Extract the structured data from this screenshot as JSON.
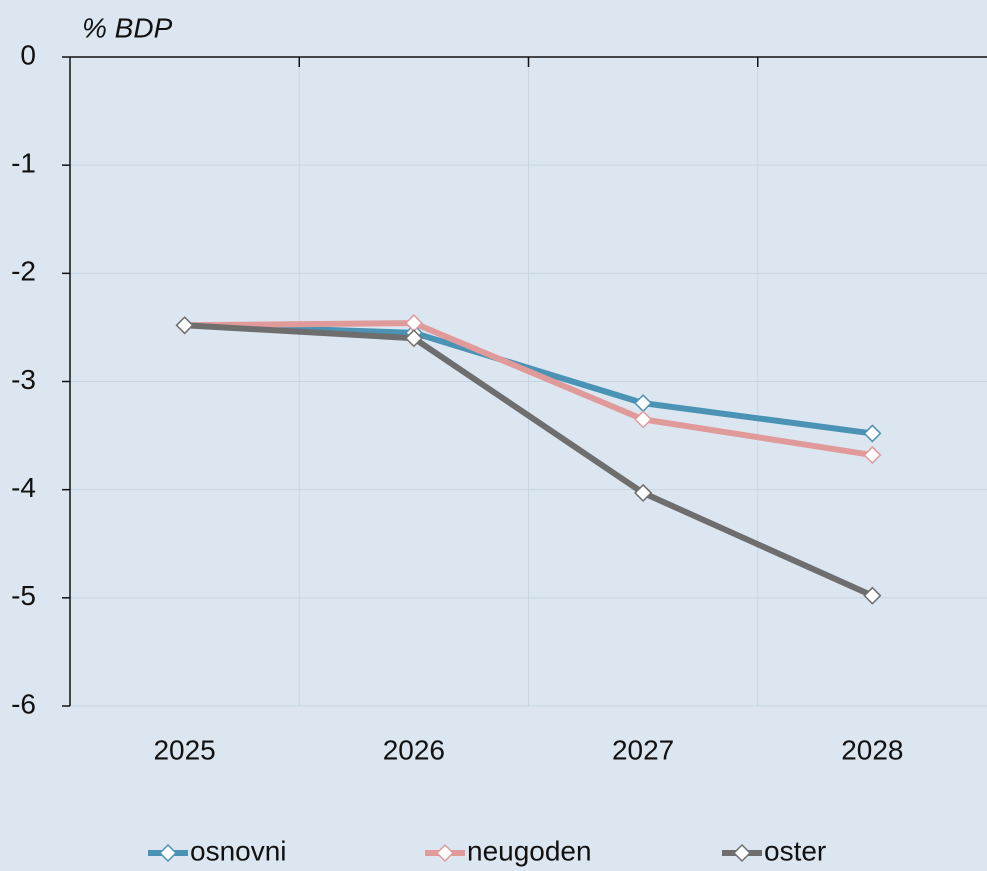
{
  "chart_data": {
    "type": "line",
    "y_label": "% BDP",
    "categories": [
      "2025",
      "2026",
      "2027",
      "2028"
    ],
    "series": [
      {
        "name": "osnovni",
        "color": "#4a93b5",
        "values": [
          -2.48,
          -2.55,
          -3.2,
          -3.48
        ]
      },
      {
        "name": "neugoden",
        "color": "#e09a9a",
        "values": [
          -2.48,
          -2.46,
          -3.35,
          -3.68
        ]
      },
      {
        "name": "oster",
        "color": "#6e6e6e",
        "values": [
          -2.48,
          -2.6,
          -4.03,
          -4.98
        ]
      }
    ],
    "ylim": [
      -6,
      0
    ],
    "yticks": [
      0,
      -1,
      -2,
      -3,
      -4,
      -5,
      -6
    ],
    "grid": true,
    "legend": "bottom"
  }
}
